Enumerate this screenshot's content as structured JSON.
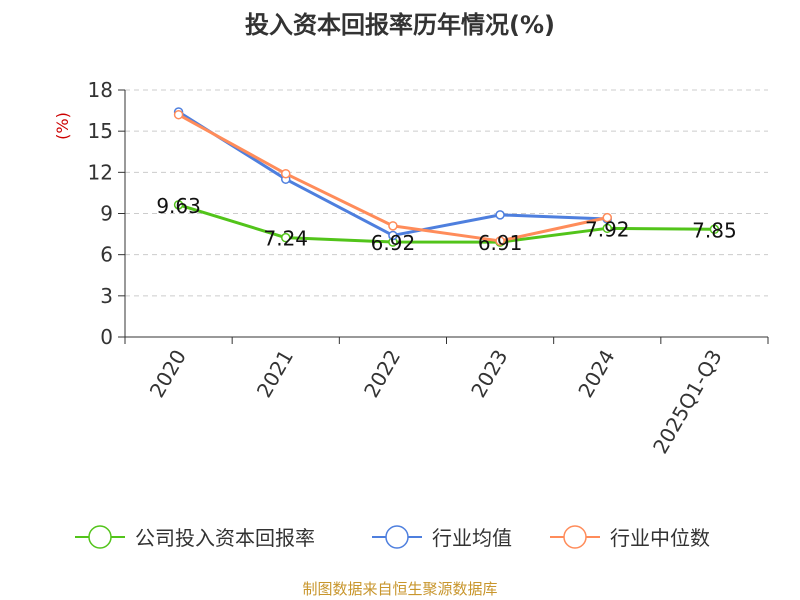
{
  "chart_data": {
    "type": "line",
    "title": "投入资本回报率历年情况(%)",
    "ylabel": "(%)",
    "ylim": [
      0,
      18
    ],
    "yticks": [
      0,
      3,
      6,
      9,
      12,
      15,
      18
    ],
    "grid": true,
    "legend_position": "bottom",
    "categories": [
      "2020",
      "2021",
      "2022",
      "2023",
      "2024",
      "2025Q1-Q3"
    ],
    "series": [
      {
        "name": "公司投入资本回报率",
        "color": "#52c41a",
        "values": [
          9.63,
          7.24,
          6.92,
          6.91,
          7.92,
          7.85
        ],
        "labels": [
          "9.63",
          "7.24",
          "6.92",
          "6.91",
          "7.92",
          "7.85"
        ]
      },
      {
        "name": "行业均值",
        "color": "#4e7fde",
        "values": [
          16.4,
          11.5,
          7.4,
          8.9,
          8.6,
          null
        ]
      },
      {
        "name": "行业中位数",
        "color": "#ff8c5a",
        "values": [
          16.2,
          11.9,
          8.1,
          7.0,
          8.7,
          null
        ]
      }
    ]
  },
  "colors": {
    "ylabel": "#cc0000",
    "source": "#c8962d",
    "grid": "#cccccc",
    "axis": "#333333"
  },
  "source": "制图数据来自恒生聚源数据库"
}
